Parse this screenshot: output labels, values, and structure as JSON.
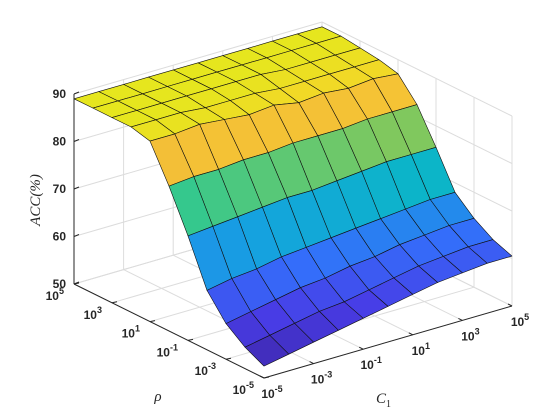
{
  "chart_data": {
    "type": "surface",
    "zlabel": "ACC(%)",
    "xlabel": "C",
    "xlabel_sub": "1",
    "ylabel": "ρ",
    "zlim": [
      50,
      90
    ],
    "z_ticks": [
      "50",
      "60",
      "70",
      "80",
      "90"
    ],
    "c1_ticks": [
      {
        "exp": -5,
        "label": "-5"
      },
      {
        "exp": -3,
        "label": "-3"
      },
      {
        "exp": -1,
        "label": "-1"
      },
      {
        "exp": 1,
        "label": "1"
      },
      {
        "exp": 3,
        "label": "3"
      },
      {
        "exp": 5,
        "label": "5"
      }
    ],
    "rho_ticks": [
      {
        "exp": -5,
        "label": "-5"
      },
      {
        "exp": -3,
        "label": "-3"
      },
      {
        "exp": -1,
        "label": "-1"
      },
      {
        "exp": 1,
        "label": "1"
      },
      {
        "exp": 3,
        "label": "3"
      },
      {
        "exp": 5,
        "label": "5"
      }
    ],
    "tick_base": "10",
    "grid": true,
    "c1_exponents": [
      -5,
      -4,
      -3,
      -2,
      -1,
      0,
      1,
      2,
      3,
      4,
      5
    ],
    "rho_exponents": [
      -5,
      -4,
      -3,
      -2,
      -1,
      0,
      1,
      2,
      3,
      4,
      5
    ],
    "z_values": [
      [
        52.5,
        53.5,
        54.5,
        55.5,
        56.5,
        57.5,
        58.5,
        59.5,
        60.0,
        60.5,
        60.5
      ],
      [
        54.5,
        55.5,
        56.5,
        57.5,
        58.0,
        59.0,
        60.0,
        61.0,
        61.5,
        62.0,
        62.0
      ],
      [
        57.5,
        58.5,
        59.5,
        60.5,
        61.0,
        62.0,
        62.5,
        63.5,
        64.0,
        64.5,
        64.5
      ],
      [
        62.5,
        63.5,
        64.0,
        65.0,
        65.5,
        66.0,
        66.5,
        67.0,
        67.5,
        68.0,
        68.0
      ],
      [
        72.0,
        72.5,
        73.0,
        73.5,
        74.0,
        74.0,
        74.5,
        75.0,
        75.5,
        75.5,
        75.5
      ],
      [
        80.5,
        81.0,
        81.0,
        81.5,
        81.5,
        82.0,
        82.0,
        82.0,
        82.5,
        82.5,
        82.5
      ],
      [
        88.0,
        88.0,
        88.5,
        88.0,
        87.5,
        88.0,
        87.0,
        87.5,
        87.0,
        87.5,
        87.0
      ],
      [
        89.0,
        89.0,
        89.0,
        88.5,
        88.5,
        88.5,
        88.0,
        88.0,
        88.0,
        88.0,
        88.0
      ],
      [
        89.0,
        89.0,
        89.0,
        89.0,
        89.0,
        89.0,
        89.0,
        88.5,
        88.5,
        88.5,
        88.5
      ],
      [
        89.0,
        89.0,
        89.0,
        89.0,
        89.0,
        89.0,
        89.0,
        89.0,
        89.0,
        89.0,
        89.0
      ],
      [
        89.0,
        89.0,
        89.0,
        89.0,
        89.0,
        89.0,
        89.0,
        89.0,
        89.0,
        89.0,
        89.0
      ]
    ]
  }
}
